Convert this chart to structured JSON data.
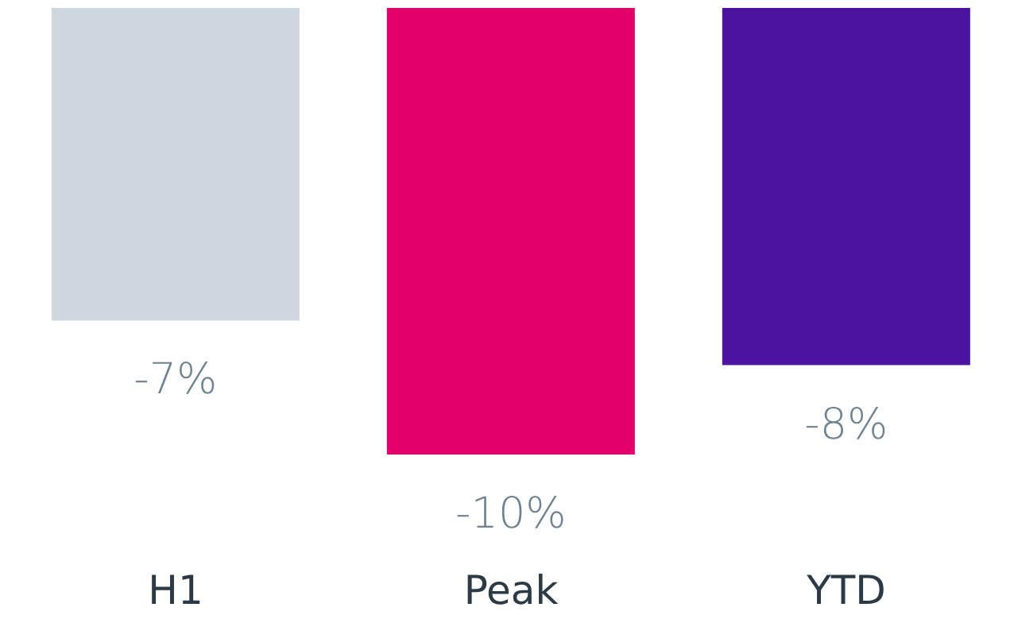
{
  "chart_data": {
    "type": "bar",
    "categories": [
      "H1",
      "Peak",
      "YTD"
    ],
    "values": [
      -7,
      -10,
      -8
    ],
    "colors": [
      "#cfd8de",
      "#e4006b",
      "#4b14a0"
    ],
    "value_labels": [
      "-7%",
      "-10%",
      "-8%"
    ]
  }
}
